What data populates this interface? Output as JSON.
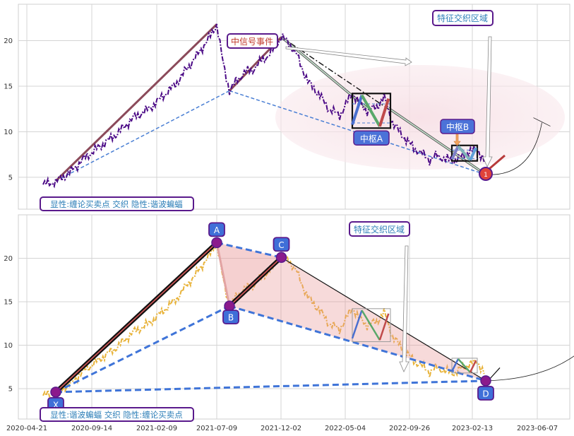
{
  "chart_data": [
    {
      "type": "line",
      "panel": "top",
      "ylim": [
        1.5,
        24
      ],
      "y_ticks": [
        5,
        10,
        15,
        20
      ],
      "grid": true,
      "price": [
        [
          0,
          4.2
        ],
        [
          12,
          4.5
        ],
        [
          25,
          5.5
        ],
        [
          40,
          7.2
        ],
        [
          55,
          8.5
        ],
        [
          70,
          9.8
        ],
        [
          85,
          11.5
        ],
        [
          100,
          12.5
        ],
        [
          112,
          13.8
        ],
        [
          125,
          15.2
        ],
        [
          135,
          16.8
        ],
        [
          145,
          18.3
        ],
        [
          152,
          19.5
        ],
        [
          158,
          20.5
        ],
        [
          164,
          21.8
        ],
        [
          170,
          17.5
        ],
        [
          176,
          14.5
        ],
        [
          182,
          15.5
        ],
        [
          190,
          16.5
        ],
        [
          198,
          16.8
        ],
        [
          206,
          17.8
        ],
        [
          214,
          18.5
        ],
        [
          220,
          19.5
        ],
        [
          225,
          20.4
        ],
        [
          232,
          19.8
        ],
        [
          240,
          18.3
        ],
        [
          250,
          15.5
        ],
        [
          260,
          14.2
        ],
        [
          270,
          12.5
        ],
        [
          280,
          11.8
        ],
        [
          286,
          13.0
        ],
        [
          292,
          14.3
        ],
        [
          298,
          13.2
        ],
        [
          306,
          12.3
        ],
        [
          315,
          12.7
        ],
        [
          322,
          13.8
        ],
        [
          330,
          11.0
        ],
        [
          340,
          9.5
        ],
        [
          350,
          8.2
        ],
        [
          358,
          7.6
        ],
        [
          365,
          6.9
        ],
        [
          372,
          7.4
        ],
        [
          380,
          7.0
        ],
        [
          388,
          6.8
        ],
        [
          395,
          7.3
        ],
        [
          402,
          7.8
        ],
        [
          410,
          8.1
        ],
        [
          418,
          6.5
        ]
      ],
      "pattern_lines": {
        "up1": [
          [
            12,
            4.6
          ],
          [
            164,
            21.8
          ]
        ],
        "up2": [
          [
            176,
            14.5
          ],
          [
            225,
            20.4
          ]
        ],
        "down1": [
          [
            225,
            20.4
          ],
          [
            306,
            12.6
          ]
        ],
        "down2": [
          [
            326,
            12.6
          ],
          [
            418,
            5.3
          ]
        ],
        "x_b": [
          [
            12,
            4.6
          ],
          [
            176,
            14.5
          ]
        ],
        "b_d": [
          [
            176,
            14.5
          ],
          [
            418,
            5.3
          ]
        ],
        "dashdot": [
          [
            225,
            20.4
          ],
          [
            418,
            5.3
          ]
        ],
        "projection": [
          [
            418,
            5.3
          ],
          [
            471,
            11.0
          ]
        ]
      },
      "zhongshu_a": {
        "x": [
          292,
          328
        ],
        "y": [
          10.4,
          14.2
        ],
        "label": "中枢A"
      },
      "zhongshu_b": {
        "x": [
          386,
          410
        ],
        "y": [
          6.8,
          8.5
        ],
        "label": "中枢B"
      },
      "annotations": {
        "signal_label": "中信号事件",
        "zone_label": "特征交织区域",
        "zone_b_label": "中枢B",
        "caption": "显性:缠论买卖点 交织 隐性:谐波蝙蝠",
        "marker_text": "1"
      }
    },
    {
      "type": "line",
      "panel": "bottom",
      "ylim": [
        1.5,
        25
      ],
      "y_ticks": [
        5,
        10,
        15,
        20
      ],
      "x_ticks": [
        "2020-04-21",
        "2020-09-14",
        "2021-02-09",
        "2021-07-09",
        "2021-12-02",
        "2022-05-04",
        "2022-09-26",
        "2023-02-13",
        "2023-06-07"
      ],
      "grid": true,
      "price": [
        [
          0,
          4.2
        ],
        [
          12,
          4.5
        ],
        [
          25,
          5.5
        ],
        [
          40,
          7.2
        ],
        [
          55,
          8.5
        ],
        [
          70,
          9.8
        ],
        [
          85,
          11.5
        ],
        [
          100,
          12.5
        ],
        [
          112,
          13.8
        ],
        [
          125,
          15.2
        ],
        [
          135,
          16.8
        ],
        [
          145,
          18.3
        ],
        [
          152,
          19.5
        ],
        [
          158,
          20.5
        ],
        [
          164,
          21.8
        ],
        [
          170,
          17.5
        ],
        [
          176,
          14.5
        ],
        [
          182,
          15.5
        ],
        [
          190,
          16.5
        ],
        [
          198,
          16.8
        ],
        [
          206,
          17.8
        ],
        [
          214,
          18.5
        ],
        [
          220,
          19.5
        ],
        [
          225,
          20.4
        ],
        [
          232,
          19.8
        ],
        [
          240,
          18.3
        ],
        [
          250,
          15.5
        ],
        [
          260,
          14.2
        ],
        [
          270,
          12.5
        ],
        [
          280,
          11.8
        ],
        [
          286,
          13.0
        ],
        [
          292,
          14.3
        ],
        [
          298,
          13.2
        ],
        [
          306,
          12.3
        ],
        [
          315,
          12.7
        ],
        [
          322,
          13.8
        ],
        [
          330,
          11.0
        ],
        [
          340,
          9.5
        ],
        [
          350,
          8.2
        ],
        [
          358,
          7.6
        ],
        [
          365,
          6.9
        ],
        [
          372,
          7.4
        ],
        [
          380,
          7.0
        ],
        [
          388,
          6.8
        ],
        [
          395,
          7.3
        ],
        [
          402,
          7.8
        ],
        [
          410,
          8.1
        ],
        [
          418,
          6.5
        ]
      ],
      "points": {
        "X": [
          12,
          4.6
        ],
        "A": [
          164,
          21.8
        ],
        "B": [
          176,
          14.5
        ],
        "C": [
          225,
          20.1
        ],
        "D": [
          418,
          5.9
        ]
      },
      "annotations": {
        "zone_label": "特征交织区域",
        "caption": "显性:谐波蝙蝠 交织 隐性:缠论买卖点"
      }
    }
  ]
}
